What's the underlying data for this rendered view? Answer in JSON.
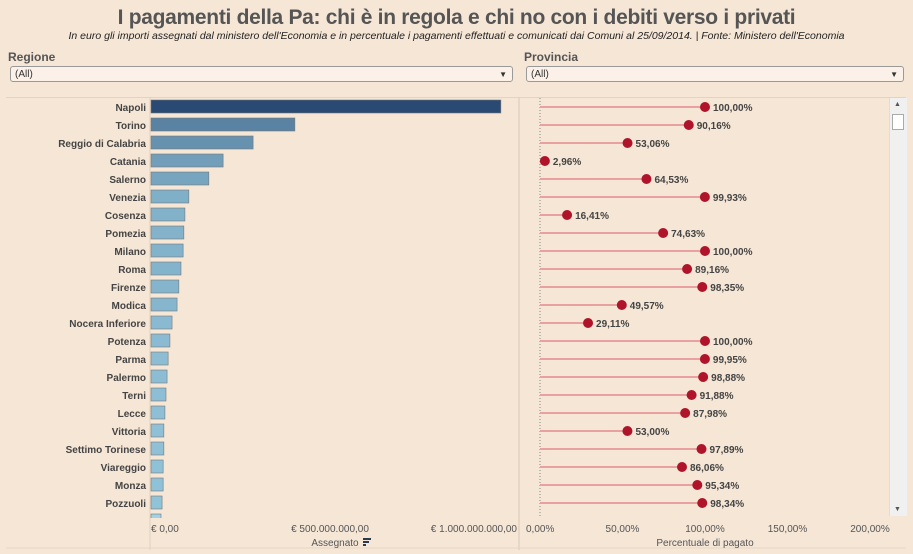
{
  "title": "I pagamenti della Pa: chi è in regola e chi no con i debiti verso i privati",
  "subtitle": "In euro gli importi assegnati dal ministero dell'Economia e in percentuale i pagamenti effettuati e comunicati dai Comuni al 25/09/2014.   |   Fonte: Ministero dell'Economia",
  "filters": {
    "regione": {
      "label": "Regione",
      "value": "(All)"
    },
    "provincia": {
      "label": "Provincia",
      "value": "(All)"
    }
  },
  "chart_data": [
    {
      "type": "bar",
      "orientation": "horizontal",
      "xlabel": "Assegnato",
      "xlim": [
        0,
        1000000000
      ],
      "x_ticks": [
        "€ 0,00",
        "€ 500.000.000,00",
        "€ 1.000.000.000,00"
      ],
      "categories": [
        "Napoli",
        "Torino",
        "Reggio di Calabria",
        "Catania",
        "Salerno",
        "Venezia",
        "Cosenza",
        "Pomezia",
        "Milano",
        "Roma",
        "Firenze",
        "Modica",
        "Nocera Inferiore",
        "Potenza",
        "Parma",
        "Palermo",
        "Terni",
        "Lecce",
        "Vittoria",
        "Settimo Torinese",
        "Viareggio",
        "Monza",
        "Pozzuoli"
      ],
      "values": [
        980000000,
        403000000,
        286000000,
        202000000,
        162000000,
        106000000,
        95000000,
        92000000,
        90000000,
        84000000,
        78000000,
        73000000,
        59000000,
        53000000,
        48000000,
        45000000,
        42000000,
        39000000,
        36000000,
        36000000,
        34000000,
        34000000,
        31000000
      ],
      "color_range": [
        "#9fd3e6",
        "#2a4a73"
      ]
    },
    {
      "type": "scatter",
      "subtype": "lollipop",
      "xlabel": "Percentuale di pagato",
      "xlim": [
        0,
        200
      ],
      "x_ticks": [
        "0,00%",
        "50,00%",
        "100,00%",
        "150,00%",
        "200,00%"
      ],
      "values": [
        100.0,
        90.16,
        53.06,
        2.96,
        64.53,
        99.93,
        16.41,
        74.63,
        100.0,
        89.16,
        98.35,
        49.57,
        29.11,
        100.0,
        99.95,
        98.88,
        91.88,
        87.98,
        53.0,
        97.89,
        86.06,
        95.34,
        98.34
      ],
      "labels": [
        "100,00%",
        "90,16%",
        "53,06%",
        "2,96%",
        "64,53%",
        "99,93%",
        "16,41%",
        "74,63%",
        "100,00%",
        "89,16%",
        "98,35%",
        "49,57%",
        "29,11%",
        "100,00%",
        "99,95%",
        "98,88%",
        "91,88%",
        "87,98%",
        "53,00%",
        "97,89%",
        "86,06%",
        "95,34%",
        "98,34%"
      ],
      "dot_color": "#b0142a",
      "line_color": "#e8a0a0"
    }
  ]
}
